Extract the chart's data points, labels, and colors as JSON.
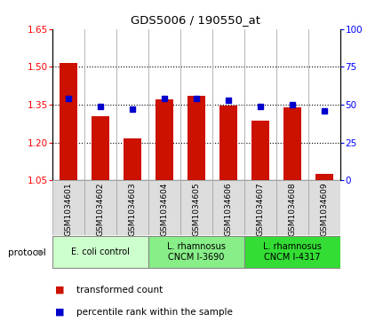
{
  "title": "GDS5006 / 190550_at",
  "samples": [
    "GSM1034601",
    "GSM1034602",
    "GSM1034603",
    "GSM1034604",
    "GSM1034605",
    "GSM1034606",
    "GSM1034607",
    "GSM1034608",
    "GSM1034609"
  ],
  "transformed_count": [
    1.515,
    1.305,
    1.215,
    1.37,
    1.385,
    1.345,
    1.285,
    1.34,
    1.075
  ],
  "percentile_rank": [
    54,
    49,
    47,
    54,
    54,
    53,
    49,
    50,
    46
  ],
  "ylim_left": [
    1.05,
    1.65
  ],
  "ylim_right": [
    0,
    100
  ],
  "yticks_left": [
    1.05,
    1.2,
    1.35,
    1.5,
    1.65
  ],
  "yticks_right": [
    0,
    25,
    50,
    75,
    100
  ],
  "bar_color": "#cc1100",
  "dot_color": "#0000cc",
  "groups": [
    {
      "label": "E. coli control",
      "start": 0,
      "end": 3,
      "color": "#ccffcc"
    },
    {
      "label": "L. rhamnosus\nCNCM I-3690",
      "start": 3,
      "end": 6,
      "color": "#88ee88"
    },
    {
      "label": "L. rhamnosus\nCNCM I-4317",
      "start": 6,
      "end": 9,
      "color": "#33dd33"
    }
  ],
  "protocol_label": "protocol",
  "legend_items": [
    {
      "label": "transformed count",
      "color": "#cc1100"
    },
    {
      "label": "percentile rank within the sample",
      "color": "#0000cc"
    }
  ],
  "background_color": "#ffffff",
  "label_bg": "#dddddd",
  "grid_linestyle": "dotted"
}
